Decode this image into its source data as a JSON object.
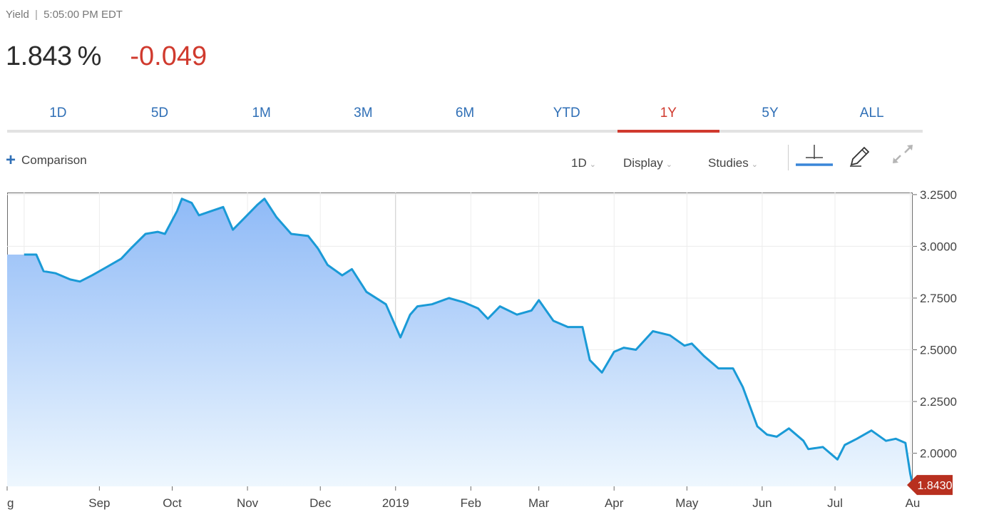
{
  "header": {
    "label": "Yield",
    "separator": "|",
    "time": "5:05:00 PM EDT",
    "last": "1.843",
    "unit": "%",
    "change": "-0.049"
  },
  "range_tabs": [
    {
      "label": "1D",
      "active": false
    },
    {
      "label": "5D",
      "active": false
    },
    {
      "label": "1M",
      "active": false
    },
    {
      "label": "3M",
      "active": false
    },
    {
      "label": "6M",
      "active": false
    },
    {
      "label": "YTD",
      "active": false
    },
    {
      "label": "1Y",
      "active": true
    },
    {
      "label": "5Y",
      "active": false
    },
    {
      "label": "ALL",
      "active": false
    }
  ],
  "toolbar": {
    "comparison_label": "Comparison",
    "interval_label": "1D",
    "display_label": "Display",
    "studies_label": "Studies",
    "icons": [
      "crosshair-icon",
      "pencil-icon",
      "expand-icon"
    ]
  },
  "colors": {
    "line": "#1a9ad6",
    "fill_top": "#8fbaf7",
    "fill_bottom": "#eef7fe",
    "accent_red": "#d03a2e",
    "link_blue": "#2f6fb6",
    "price_tag": "#b8301f"
  },
  "chart_data": {
    "type": "area",
    "ylim": [
      1.84,
      3.26
    ],
    "y_ticks": [
      "3.2500",
      "3.0000",
      "2.7500",
      "2.5000",
      "2.2500",
      "2.0000"
    ],
    "x_ticks": [
      "g",
      "Sep",
      "Oct",
      "Nov",
      "Dec",
      "2019",
      "Feb",
      "Mar",
      "Apr",
      "May",
      "Jun",
      "Jul",
      "Au"
    ],
    "last_value_label": "1.8430",
    "grid": true,
    "series": [
      {
        "x": [
          "2018-08-01",
          "2018-08-06",
          "2018-08-09",
          "2018-08-14",
          "2018-08-20",
          "2018-08-24",
          "2018-08-29",
          "2018-09-04",
          "2018-09-10",
          "2018-09-14",
          "2018-09-20",
          "2018-09-25",
          "2018-09-28",
          "2018-10-03",
          "2018-10-05",
          "2018-10-09",
          "2018-10-12",
          "2018-10-17",
          "2018-10-22",
          "2018-10-26",
          "2018-10-31",
          "2018-11-05",
          "2018-11-08",
          "2018-11-13",
          "2018-11-19",
          "2018-11-26",
          "2018-11-30",
          "2018-12-04",
          "2018-12-10",
          "2018-12-14",
          "2018-12-20",
          "2018-12-28",
          "2019-01-03",
          "2019-01-07",
          "2019-01-10",
          "2019-01-16",
          "2019-01-23",
          "2019-01-29",
          "2019-02-04",
          "2019-02-08",
          "2019-02-13",
          "2019-02-20",
          "2019-02-26",
          "2019-03-01",
          "2019-03-07",
          "2019-03-13",
          "2019-03-19",
          "2019-03-22",
          "2019-03-27",
          "2019-04-01",
          "2019-04-05",
          "2019-04-10",
          "2019-04-17",
          "2019-04-24",
          "2019-04-30",
          "2019-05-03",
          "2019-05-08",
          "2019-05-14",
          "2019-05-20",
          "2019-05-24",
          "2019-05-30",
          "2019-06-03",
          "2019-06-07",
          "2019-06-12",
          "2019-06-18",
          "2019-06-20",
          "2019-06-26",
          "2019-07-02",
          "2019-07-05",
          "2019-07-10",
          "2019-07-16",
          "2019-07-22",
          "2019-07-26",
          "2019-07-30",
          "2019-08-01",
          "2019-08-02"
        ],
        "values": [
          2.96,
          2.96,
          2.88,
          2.87,
          2.84,
          2.83,
          2.86,
          2.9,
          2.94,
          2.99,
          3.06,
          3.07,
          3.06,
          3.17,
          3.23,
          3.21,
          3.15,
          3.17,
          3.19,
          3.08,
          3.14,
          3.2,
          3.23,
          3.14,
          3.06,
          3.05,
          2.99,
          2.91,
          2.86,
          2.89,
          2.78,
          2.72,
          2.56,
          2.67,
          2.71,
          2.72,
          2.75,
          2.73,
          2.7,
          2.65,
          2.71,
          2.67,
          2.69,
          2.74,
          2.64,
          2.61,
          2.61,
          2.45,
          2.39,
          2.49,
          2.51,
          2.5,
          2.59,
          2.57,
          2.52,
          2.53,
          2.47,
          2.41,
          2.41,
          2.32,
          2.13,
          2.09,
          2.08,
          2.12,
          2.06,
          2.02,
          2.03,
          1.97,
          2.04,
          2.07,
          2.11,
          2.06,
          2.07,
          2.05,
          1.9,
          1.843
        ]
      }
    ]
  }
}
